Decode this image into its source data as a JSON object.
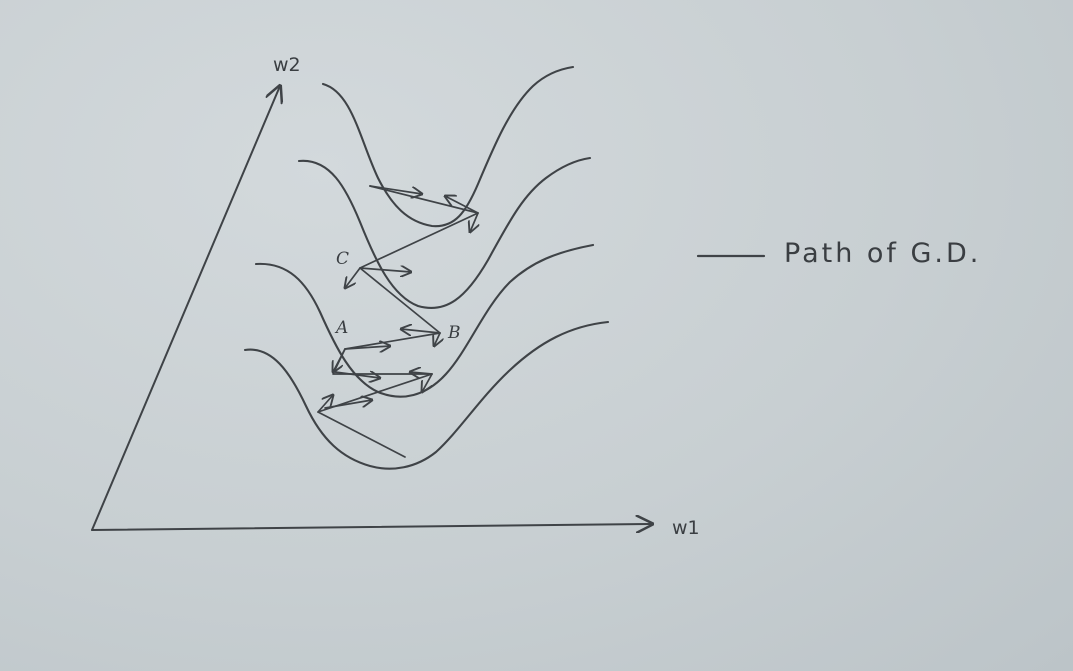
{
  "axes": {
    "x_label": "w1",
    "y_label": "w2"
  },
  "points": {
    "a": "A",
    "b": "B",
    "c": "C"
  },
  "legend": {
    "label": "Path of G.D."
  },
  "colors": {
    "ink": "#3f4347",
    "paper": "#c9d0d3"
  }
}
